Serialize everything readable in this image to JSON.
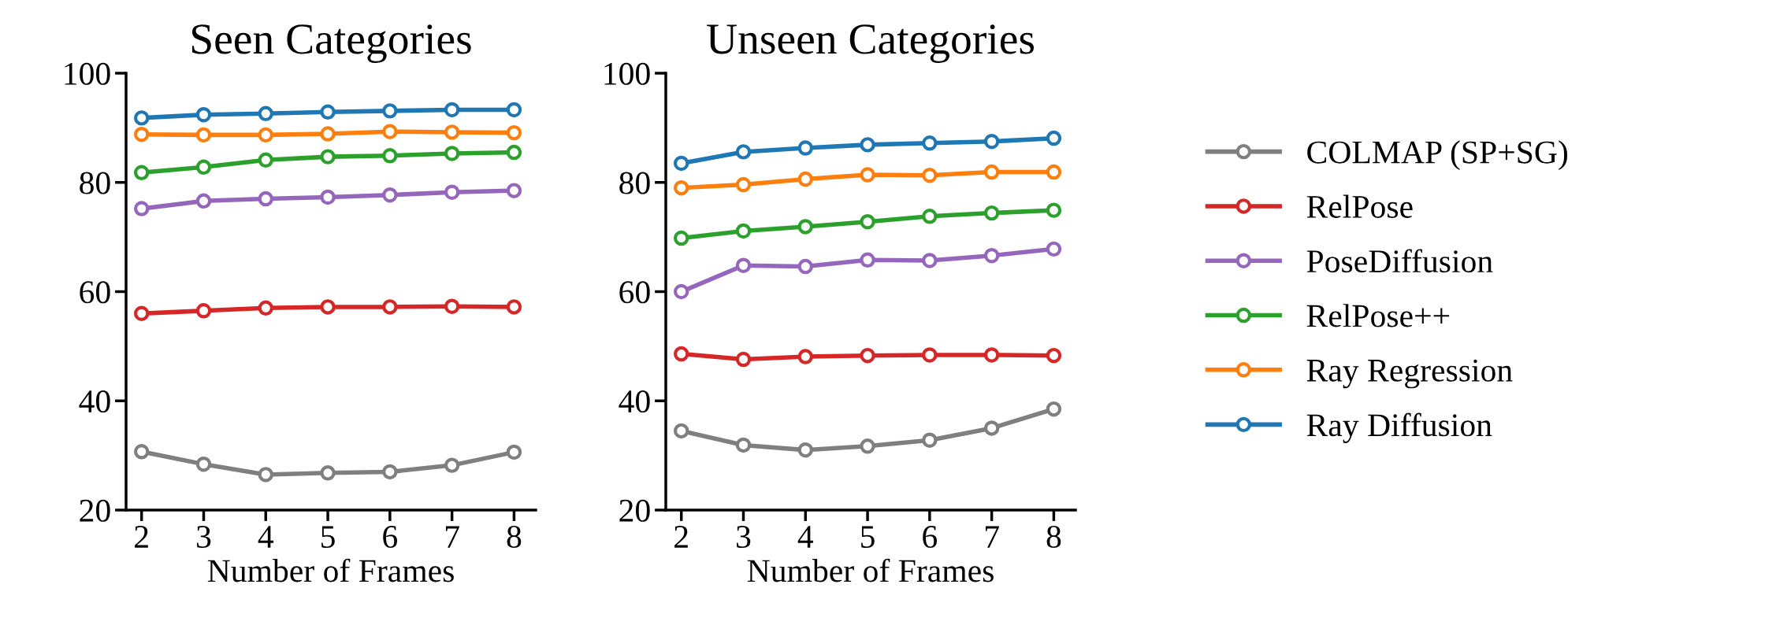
{
  "chart_data": [
    {
      "type": "line",
      "title": "Seen Categories",
      "xlabel": "Number of Frames",
      "x": [
        2,
        3,
        4,
        5,
        6,
        7,
        8
      ],
      "xlim": [
        1.75,
        8.35
      ],
      "xticks": [
        2,
        3,
        4,
        5,
        6,
        7,
        8
      ],
      "ylim": [
        20,
        100
      ],
      "yticks": [
        20,
        40,
        60,
        80,
        100
      ],
      "marker": "circle",
      "line_style": "solid",
      "grid": false,
      "series": [
        {
          "color": "#7f7f7f",
          "values": [
            30.7,
            28.4,
            26.5,
            26.8,
            27.0,
            28.2,
            30.6
          ]
        },
        {
          "color": "#d62728",
          "values": [
            56.0,
            56.5,
            57.0,
            57.2,
            57.2,
            57.3,
            57.2
          ]
        },
        {
          "color": "#9467bd",
          "values": [
            75.2,
            76.6,
            77.0,
            77.3,
            77.7,
            78.2,
            78.5
          ]
        },
        {
          "color": "#2ca02c",
          "values": [
            81.8,
            82.8,
            84.1,
            84.7,
            84.9,
            85.3,
            85.5
          ]
        },
        {
          "color": "#ff7f0e",
          "values": [
            88.8,
            88.7,
            88.7,
            88.9,
            89.3,
            89.2,
            89.1
          ]
        },
        {
          "color": "#1f77b4",
          "values": [
            91.8,
            92.4,
            92.6,
            92.9,
            93.1,
            93.3,
            93.3
          ]
        }
      ]
    },
    {
      "type": "line",
      "title": "Unseen Categories",
      "xlabel": "Number of Frames",
      "x": [
        2,
        3,
        4,
        5,
        6,
        7,
        8
      ],
      "xlim": [
        1.75,
        8.35
      ],
      "xticks": [
        2,
        3,
        4,
        5,
        6,
        7,
        8
      ],
      "ylim": [
        20,
        100
      ],
      "yticks": [
        20,
        40,
        60,
        80,
        100
      ],
      "marker": "circle",
      "line_style": "solid",
      "grid": false,
      "legend": "right",
      "series": [
        {
          "name": "COLMAP (SP+SG)",
          "color": "#7f7f7f",
          "values": [
            34.5,
            31.9,
            31.0,
            31.7,
            32.8,
            35.0,
            38.5
          ]
        },
        {
          "name": "RelPose",
          "color": "#d62728",
          "values": [
            48.6,
            47.6,
            48.1,
            48.3,
            48.4,
            48.4,
            48.3
          ]
        },
        {
          "name": "PoseDiffusion",
          "color": "#9467bd",
          "values": [
            60.0,
            64.8,
            64.6,
            65.8,
            65.7,
            66.6,
            67.8
          ]
        },
        {
          "name": "RelPose++",
          "color": "#2ca02c",
          "values": [
            69.8,
            71.1,
            71.9,
            72.8,
            73.8,
            74.4,
            74.9
          ]
        },
        {
          "name": "Ray Regression",
          "color": "#ff7f0e",
          "values": [
            79.0,
            79.6,
            80.6,
            81.4,
            81.3,
            81.9,
            81.9
          ]
        },
        {
          "name": "Ray Diffusion",
          "color": "#1f77b4",
          "values": [
            83.5,
            85.6,
            86.3,
            86.9,
            87.2,
            87.5,
            88.1
          ]
        }
      ]
    }
  ]
}
